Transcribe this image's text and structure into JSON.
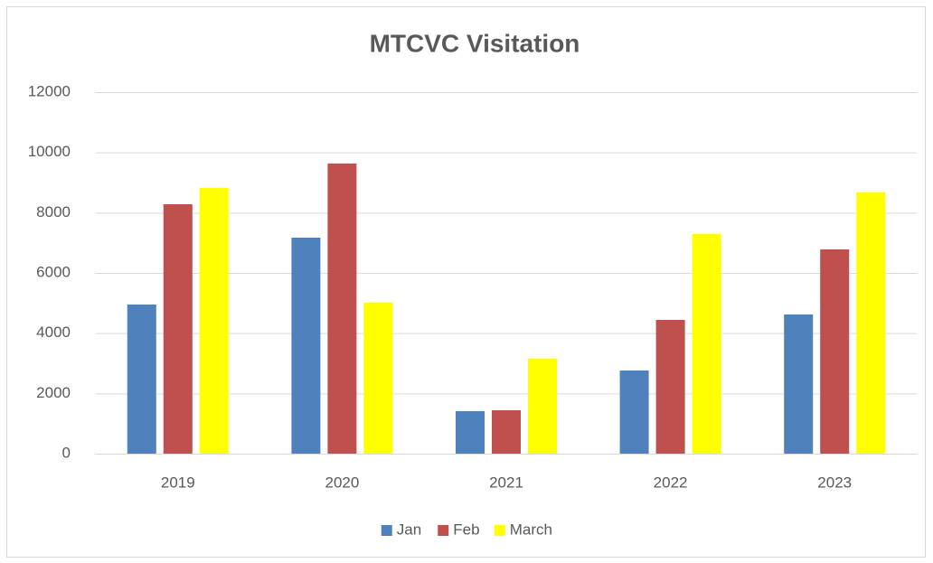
{
  "chart_data": {
    "type": "bar",
    "title": "MTCVC Visitation",
    "categories": [
      "2019",
      "2020",
      "2021",
      "2022",
      "2023"
    ],
    "series": [
      {
        "name": "Jan",
        "color": "#4f81bd",
        "values": [
          4950,
          7170,
          1410,
          2760,
          4620
        ]
      },
      {
        "name": "Feb",
        "color": "#c0504d",
        "values": [
          8280,
          9630,
          1440,
          4440,
          6780
        ]
      },
      {
        "name": "March",
        "color": "#ffff00",
        "values": [
          8820,
          5010,
          3150,
          7290,
          8670
        ]
      }
    ],
    "ylim": [
      0,
      12000
    ],
    "yticks": [
      0,
      2000,
      4000,
      6000,
      8000,
      10000,
      12000
    ],
    "grid": true,
    "legend": "bottom"
  }
}
